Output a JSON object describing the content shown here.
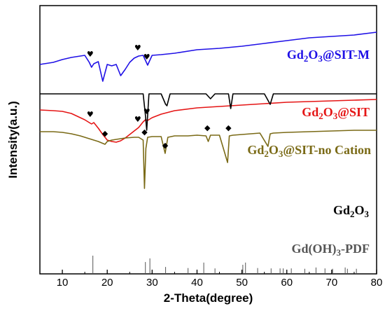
{
  "chart_data": {
    "type": "line",
    "xlabel": "2-Theta(degree)",
    "ylabel": "Intensity(a.u.)",
    "xlim": [
      5,
      80
    ],
    "xticks": [
      10,
      20,
      30,
      40,
      50,
      60,
      70,
      80
    ],
    "yticks_shown": false,
    "grid": false,
    "colors": {
      "Gd2O3@SIT-M": "#1f10e6",
      "Gd2O3@SIT": "#e51515",
      "Gd2O3@SIT-no Cation": "#7a6a16",
      "Gd2O3": "#000000",
      "Gd(OH)3-PDF": "#555555"
    },
    "series": [
      {
        "name": "Gd2O3@SIT-M",
        "label_parts": [
          [
            "Gd",
            ""
          ],
          [
            "2",
            "sub"
          ],
          [
            "O",
            ""
          ],
          [
            "3",
            "sub"
          ],
          [
            "@SIT-M",
            ""
          ]
        ],
        "x": [
          5,
          8,
          10,
          12,
          14,
          15,
          16,
          16.5,
          17,
          18,
          19,
          20,
          21,
          22,
          23,
          24,
          25,
          26,
          27,
          28,
          29,
          30,
          32,
          35,
          40,
          45,
          50,
          55,
          60,
          65,
          70,
          75,
          80
        ],
        "y": [
          372,
          375,
          379,
          382,
          384,
          385,
          375,
          368,
          373,
          376,
          348,
          372,
          370,
          372,
          356,
          365,
          375,
          381,
          384,
          385,
          371,
          385,
          386,
          388,
          393,
          395,
          398,
          402,
          406,
          410,
          412,
          414,
          418
        ]
      },
      {
        "name": "Gd2O3@SIT",
        "label_parts": [
          [
            "Gd",
            ""
          ],
          [
            "2",
            "sub"
          ],
          [
            "O",
            ""
          ],
          [
            "3",
            "sub"
          ],
          [
            "@SIT",
            ""
          ]
        ],
        "x": [
          5,
          8,
          10,
          12,
          14,
          15,
          16,
          16.5,
          17,
          18,
          19,
          20,
          21,
          22,
          23,
          24,
          25,
          26,
          27,
          28,
          28.5,
          29,
          30,
          32,
          35,
          40,
          45,
          50,
          55,
          60,
          65,
          70,
          75,
          80
        ],
        "y": [
          307,
          306,
          305,
          302,
          296,
          293,
          289,
          287,
          289,
          281,
          272,
          264,
          262,
          261,
          263,
          267,
          272,
          277,
          282,
          290,
          293,
          292,
          296,
          301,
          306,
          310,
          312,
          314,
          316,
          318,
          319,
          320,
          321,
          322
        ]
      },
      {
        "name": "Gd2O3@SIT-no Cation",
        "label_parts": [
          [
            "Gd",
            ""
          ],
          [
            "2",
            "sub"
          ],
          [
            "O",
            ""
          ],
          [
            "3",
            "sub"
          ],
          [
            "@SIT-no Cation",
            ""
          ]
        ],
        "x": [
          5,
          8,
          10,
          12,
          14,
          16,
          18,
          19.5,
          20,
          21,
          22,
          24,
          26,
          27,
          28,
          28.3,
          28.6,
          29,
          30,
          32,
          32.9,
          33.5,
          35,
          38,
          40,
          42,
          42.5,
          43,
          45,
          46.8,
          47.2,
          48,
          50,
          52,
          54,
          55.8,
          56.3,
          57,
          60,
          65,
          70,
          75,
          80
        ],
        "y": [
          276,
          276,
          275,
          273,
          270,
          266,
          262,
          258,
          262,
          264,
          265,
          267,
          268,
          268,
          264,
          195,
          252,
          268,
          269,
          269,
          245,
          268,
          270,
          270,
          271,
          270,
          262,
          271,
          271,
          232,
          270,
          271,
          272,
          273,
          274,
          255,
          273,
          274,
          275,
          276,
          277,
          278,
          278
        ]
      },
      {
        "name": "Gd2O3",
        "label_parts": [
          [
            "Gd",
            ""
          ],
          [
            "2",
            "sub"
          ],
          [
            "O",
            ""
          ],
          [
            "3",
            "sub"
          ]
        ],
        "x": [
          5,
          8,
          10,
          15,
          20,
          25,
          28,
          28.5,
          28.8,
          29.3,
          30,
          32,
          33,
          33.3,
          34,
          38,
          40,
          42,
          43,
          44,
          45,
          47,
          47.5,
          48,
          50,
          55,
          56.3,
          57,
          60,
          65,
          70,
          75,
          80
        ],
        "y": [
          330,
          330,
          330,
          330,
          330,
          330,
          330,
          300,
          278,
          330,
          330,
          330,
          315,
          313,
          330,
          330,
          330,
          330,
          323,
          330,
          330,
          330,
          309,
          330,
          330,
          330,
          315,
          330,
          330,
          330,
          330,
          330,
          330
        ]
      }
    ],
    "reference_pattern": {
      "name": "Gd(OH)3-PDF",
      "label_parts": [
        [
          "Gd(OH)",
          ""
        ],
        [
          "3",
          "sub"
        ],
        [
          "-PDF",
          ""
        ]
      ],
      "peaks": [
        16.8,
        28.5,
        29.5,
        33.0,
        38.0,
        41.5,
        44.0,
        50.2,
        50.8,
        53.5,
        56.5,
        58.5,
        59.2,
        61.0,
        64.0,
        66.5,
        68.5,
        70.2,
        73.0,
        73.5,
        75.5
      ],
      "heights": [
        1.0,
        0.65,
        0.85,
        0.38,
        0.32,
        0.62,
        0.3,
        0.5,
        0.62,
        0.32,
        0.3,
        0.3,
        0.3,
        0.3,
        0.28,
        0.35,
        0.3,
        0.28,
        0.35,
        0.28,
        0.28
      ]
    },
    "annotations": [
      {
        "marker": "♥",
        "x": 16.2,
        "series": "Gd2O3@SIT-M"
      },
      {
        "marker": "♥",
        "x": 26.8,
        "series": "Gd2O3@SIT-M"
      },
      {
        "marker": "♥",
        "x": 28.8,
        "series": "Gd2O3@SIT-M"
      },
      {
        "marker": "♥",
        "x": 16.2,
        "series": "Gd2O3@SIT"
      },
      {
        "marker": "♥",
        "x": 26.8,
        "series": "Gd2O3@SIT"
      },
      {
        "marker": "♥",
        "x": 28.8,
        "series": "Gd2O3@SIT"
      },
      {
        "marker": "◆",
        "x": 19.5,
        "series": "Gd2O3@SIT-no Cation"
      },
      {
        "marker": "◆",
        "x": 28.3,
        "series": "Gd2O3@SIT-no Cation"
      },
      {
        "marker": "◆",
        "x": 32.9,
        "series": "Gd2O3@SIT-no Cation"
      },
      {
        "marker": "◆",
        "x": 42.3,
        "series": "Gd2O3@SIT-no Cation"
      },
      {
        "marker": "◆",
        "x": 47.0,
        "series": "Gd2O3@SIT-no Cation"
      }
    ]
  }
}
